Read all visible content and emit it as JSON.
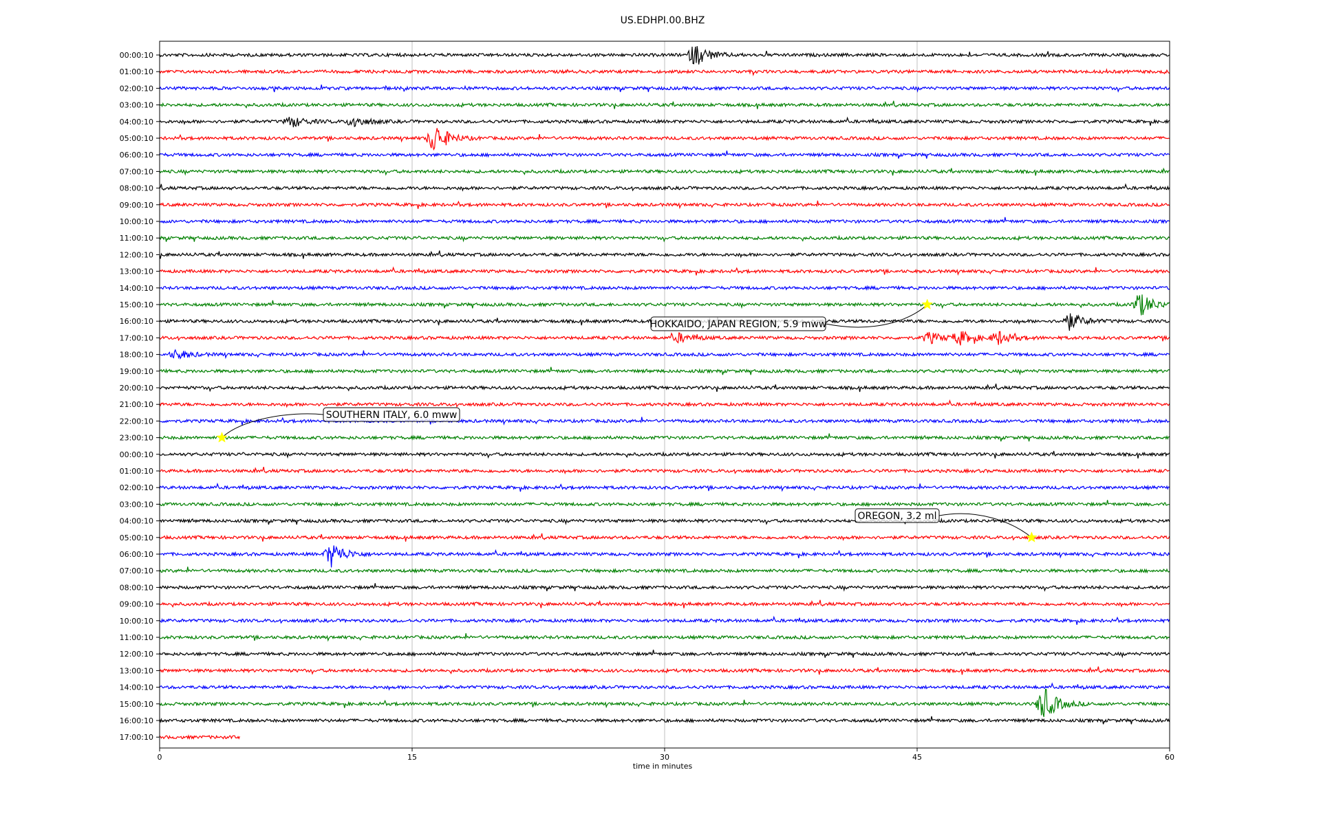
{
  "chart_data": {
    "type": "line",
    "title": "US.EDHPI.00.BHZ",
    "xlabel": "time in minutes",
    "ylabel": "",
    "xlim": [
      0,
      60
    ],
    "x_ticks": [
      0,
      15,
      30,
      45,
      60
    ],
    "grid": "vertical-at-x-ticks",
    "row_colors": [
      "#000000",
      "#ff0000",
      "#0000ff",
      "#008000"
    ],
    "row_labels": [
      "00:00:10",
      "01:00:10",
      "02:00:10",
      "03:00:10",
      "04:00:10",
      "05:00:10",
      "06:00:10",
      "07:00:10",
      "08:00:10",
      "09:00:10",
      "10:00:10",
      "11:00:10",
      "12:00:10",
      "13:00:10",
      "14:00:10",
      "15:00:10",
      "16:00:10",
      "17:00:10",
      "18:00:10",
      "19:00:10",
      "20:00:10",
      "21:00:10",
      "22:00:10",
      "23:00:10",
      "00:00:10",
      "01:00:10",
      "02:00:10",
      "03:00:10",
      "04:00:10",
      "05:00:10",
      "06:00:10",
      "07:00:10",
      "08:00:10",
      "09:00:10",
      "10:00:10",
      "11:00:10",
      "12:00:10",
      "13:00:10",
      "14:00:10",
      "15:00:10",
      "16:00:10",
      "17:00:10"
    ],
    "last_row_end_minute": 4.8,
    "events": [
      {
        "row": 0,
        "minute": 31.8,
        "amp": 1.0
      },
      {
        "row": 4,
        "minute": 7.8,
        "amp": 0.5
      },
      {
        "row": 4,
        "minute": 11.5,
        "amp": 0.5
      },
      {
        "row": 5,
        "minute": 16.3,
        "amp": 1.4
      },
      {
        "row": 15,
        "minute": 58.2,
        "amp": 1.1
      },
      {
        "row": 16,
        "minute": 54.0,
        "amp": 0.8
      },
      {
        "row": 17,
        "minute": 30.8,
        "amp": 0.4
      },
      {
        "row": 17,
        "minute": 45.7,
        "amp": 0.5
      },
      {
        "row": 17,
        "minute": 47.5,
        "amp": 0.6
      },
      {
        "row": 17,
        "minute": 49.8,
        "amp": 0.6
      },
      {
        "row": 18,
        "minute": 1.0,
        "amp": 0.4
      },
      {
        "row": 30,
        "minute": 10.2,
        "amp": 1.1
      },
      {
        "row": 39,
        "minute": 52.5,
        "amp": 1.5
      }
    ],
    "annotations": [
      {
        "label": "HOKKAIDO, JAPAN REGION, 5.9 mww",
        "row": 15,
        "minute": 45.6
      },
      {
        "label": "SOUTHERN ITALY, 6.0 mww",
        "row": 23,
        "minute": 3.7
      },
      {
        "label": "OREGON, 3.2 ml",
        "row": 29,
        "minute": 51.8
      }
    ],
    "marker_color": "#ffff00"
  }
}
